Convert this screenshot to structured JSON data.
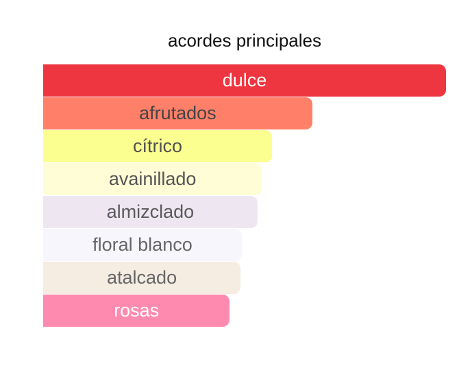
{
  "chart_data": {
    "type": "bar",
    "orientation": "horizontal",
    "title": "acordes principales",
    "categories": [
      "dulce",
      "afrutados",
      "cítrico",
      "avainillado",
      "almizclado",
      "floral blanco",
      "atalcado",
      "rosas"
    ],
    "values": [
      100,
      66.8,
      56.8,
      54.3,
      53.2,
      49.3,
      49.0,
      46.3
    ],
    "colors": [
      "#EE3640",
      "#FF7F69",
      "#FAFF90",
      "#FFFDD6",
      "#EEE7F2",
      "#F6F6FC",
      "#F5ECE2",
      "#FF8AAF"
    ],
    "text_colors": [
      "#FFFFFF",
      "#444444",
      "#505050",
      "#555555",
      "#5A5A5A",
      "#666666",
      "#666666",
      "#FFFFFF"
    ],
    "xlim": [
      0,
      100
    ]
  }
}
